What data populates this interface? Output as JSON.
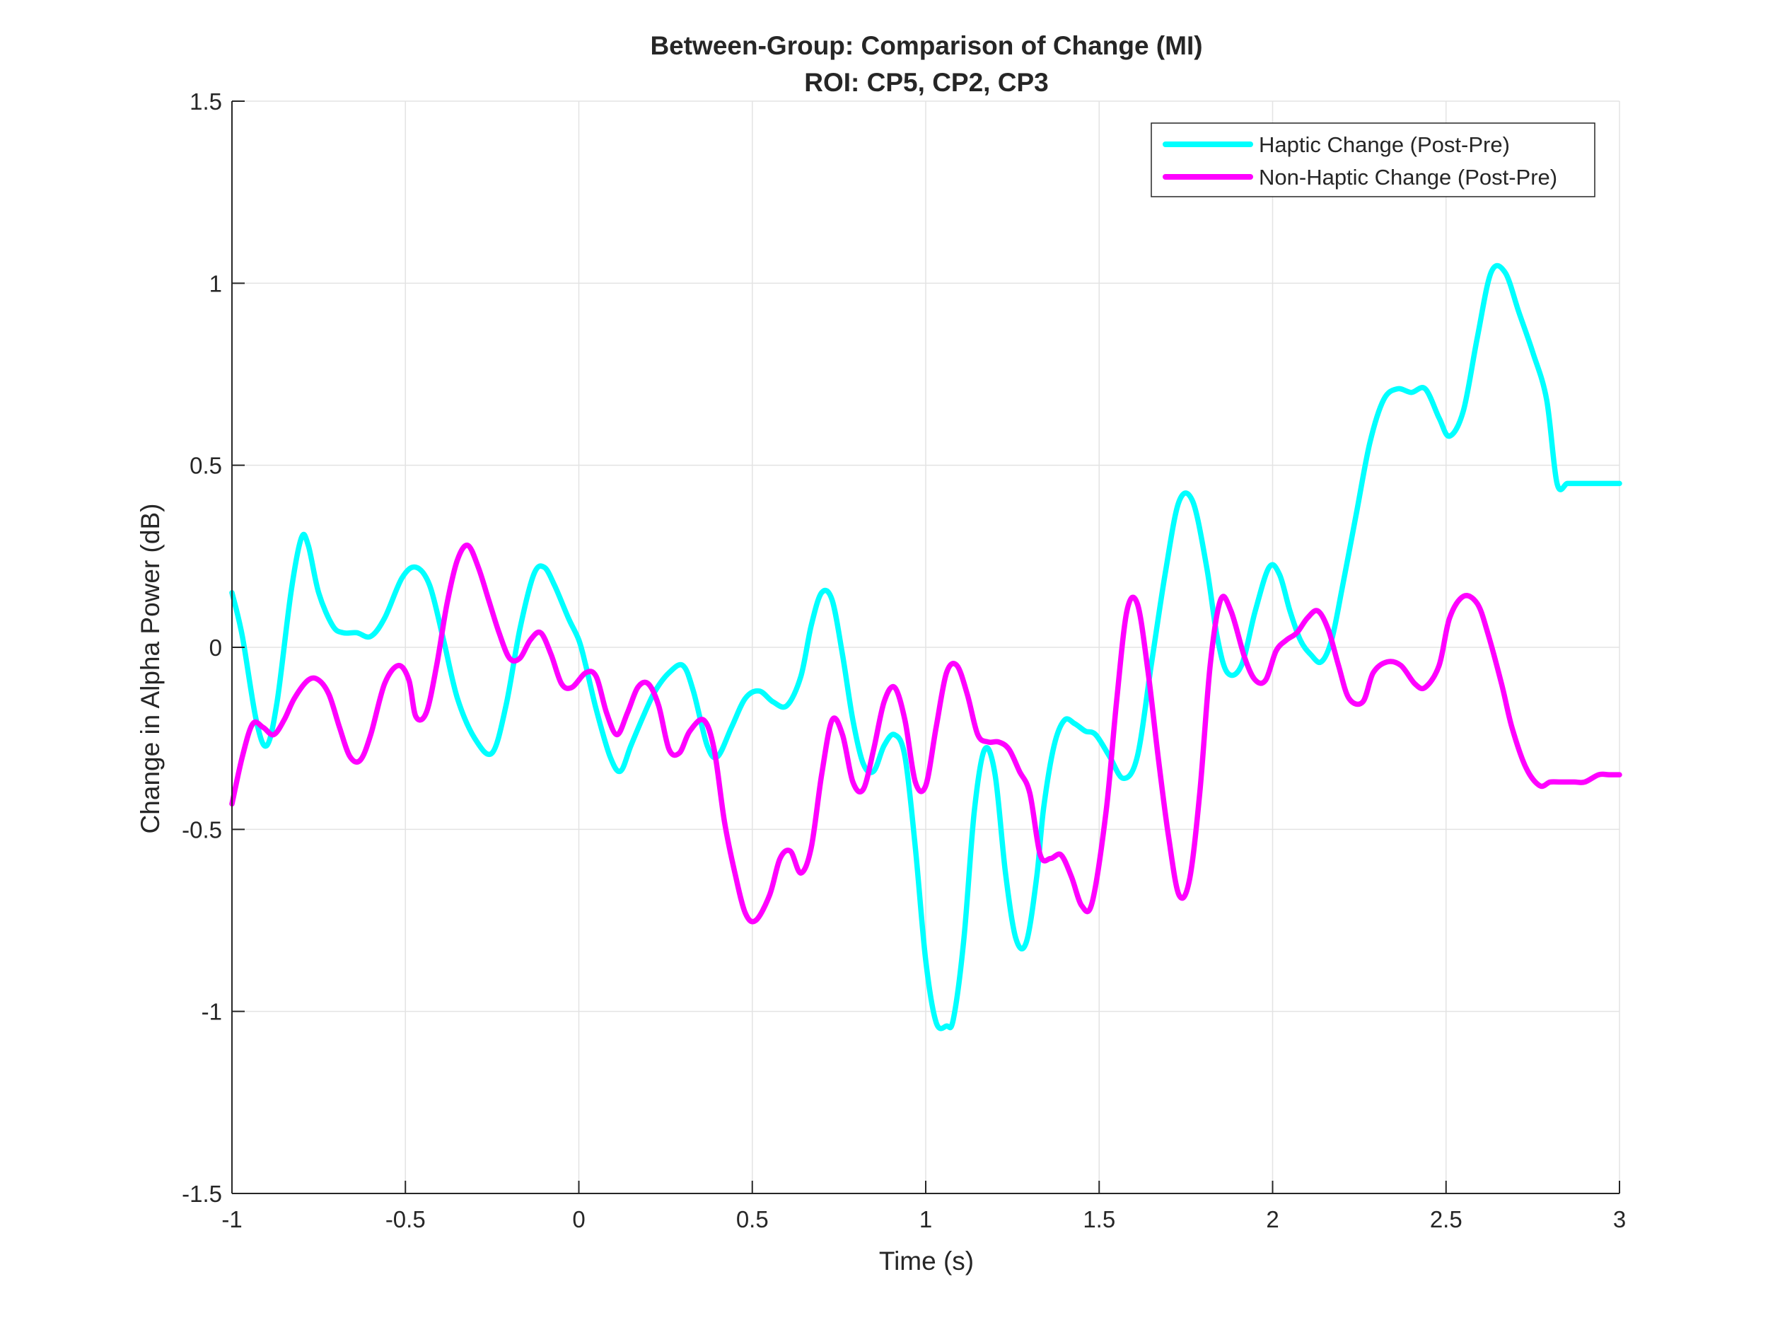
{
  "chart_data": {
    "type": "line",
    "title": "Between-Group: Comparison of Change (MI)",
    "subtitle": "ROI: CP5, CP2, CP3",
    "xlabel": "Time (s)",
    "ylabel": "Change in Alpha Power (dB)",
    "xlim": [
      -1,
      3
    ],
    "ylim": [
      -1.5,
      1.5
    ],
    "xticks": [
      -1,
      -0.5,
      0,
      0.5,
      1,
      1.5,
      2,
      2.5,
      3
    ],
    "xtick_labels": [
      "-1",
      "-0.5",
      "0",
      "0.5",
      "1",
      "1.5",
      "2",
      "2.5",
      "3"
    ],
    "yticks": [
      -1.5,
      -1,
      -0.5,
      0,
      0.5,
      1,
      1.5
    ],
    "ytick_labels": [
      "-1.5",
      "-1",
      "-0.5",
      "0",
      "0.5",
      "1",
      "1.5"
    ],
    "grid": true,
    "legend_position": "top-right",
    "series": [
      {
        "name": "Haptic Change (Post-Pre)",
        "color": "#00FFFF",
        "x": [
          -1,
          -0.97,
          -0.93,
          -0.9,
          -0.87,
          -0.83,
          -0.8,
          -0.78,
          -0.75,
          -0.71,
          -0.68,
          -0.64,
          -0.6,
          -0.56,
          -0.51,
          -0.47,
          -0.43,
          -0.39,
          -0.35,
          -0.3,
          -0.25,
          -0.21,
          -0.17,
          -0.13,
          -0.1,
          -0.07,
          -0.03,
          0,
          0.02,
          0.05,
          0.09,
          0.12,
          0.15,
          0.19,
          0.22,
          0.26,
          0.3,
          0.33,
          0.37,
          0.4,
          0.44,
          0.48,
          0.52,
          0.56,
          0.6,
          0.64,
          0.67,
          0.7,
          0.73,
          0.76,
          0.79,
          0.82,
          0.85,
          0.88,
          0.91,
          0.94,
          0.97,
          1.0,
          1.03,
          1.06,
          1.08,
          1.11,
          1.14,
          1.17,
          1.2,
          1.23,
          1.26,
          1.29,
          1.32,
          1.34,
          1.37,
          1.4,
          1.43,
          1.46,
          1.49,
          1.53,
          1.57,
          1.61,
          1.65,
          1.69,
          1.73,
          1.77,
          1.81,
          1.84,
          1.87,
          1.91,
          1.95,
          1.99,
          2.02,
          2.05,
          2.08,
          2.11,
          2.14,
          2.17,
          2.2,
          2.24,
          2.28,
          2.32,
          2.36,
          2.4,
          2.44,
          2.48,
          2.51,
          2.55,
          2.59,
          2.63,
          2.67,
          2.71,
          2.75,
          2.79,
          2.82,
          2.85,
          2.88,
          2.92,
          2.96,
          3.0
        ],
        "values": [
          0.15,
          0.03,
          -0.2,
          -0.27,
          -0.15,
          0.15,
          0.3,
          0.28,
          0.15,
          0.06,
          0.04,
          0.04,
          0.03,
          0.08,
          0.19,
          0.22,
          0.17,
          0.02,
          -0.14,
          -0.25,
          -0.29,
          -0.16,
          0.05,
          0.2,
          0.22,
          0.17,
          0.08,
          0.02,
          -0.05,
          -0.17,
          -0.3,
          -0.34,
          -0.27,
          -0.18,
          -0.12,
          -0.07,
          -0.05,
          -0.12,
          -0.27,
          -0.3,
          -0.22,
          -0.14,
          -0.12,
          -0.15,
          -0.16,
          -0.08,
          0.06,
          0.15,
          0.13,
          -0.02,
          -0.2,
          -0.32,
          -0.34,
          -0.27,
          -0.24,
          -0.3,
          -0.55,
          -0.86,
          -1.03,
          -1.04,
          -1.02,
          -0.8,
          -0.45,
          -0.28,
          -0.35,
          -0.62,
          -0.8,
          -0.81,
          -0.63,
          -0.44,
          -0.27,
          -0.2,
          -0.21,
          -0.23,
          -0.24,
          -0.3,
          -0.36,
          -0.3,
          -0.05,
          0.2,
          0.4,
          0.4,
          0.22,
          0.03,
          -0.07,
          -0.05,
          0.1,
          0.22,
          0.2,
          0.1,
          0.02,
          -0.02,
          -0.04,
          0.02,
          0.16,
          0.36,
          0.56,
          0.68,
          0.71,
          0.7,
          0.71,
          0.63,
          0.58,
          0.65,
          0.85,
          1.03,
          1.03,
          0.92,
          0.81,
          0.68,
          0.45,
          0.45,
          0.45,
          0.45,
          0.45,
          0.45
        ]
      },
      {
        "name": "Non-Haptic Change (Post-Pre)",
        "color": "#FF00FF",
        "x": [
          -1,
          -0.97,
          -0.94,
          -0.91,
          -0.88,
          -0.85,
          -0.82,
          -0.78,
          -0.75,
          -0.72,
          -0.69,
          -0.66,
          -0.63,
          -0.6,
          -0.56,
          -0.52,
          -0.49,
          -0.47,
          -0.44,
          -0.41,
          -0.38,
          -0.35,
          -0.32,
          -0.29,
          -0.26,
          -0.23,
          -0.2,
          -0.17,
          -0.14,
          -0.11,
          -0.08,
          -0.05,
          -0.02,
          0.02,
          0.05,
          0.08,
          0.11,
          0.14,
          0.17,
          0.2,
          0.23,
          0.26,
          0.29,
          0.32,
          0.36,
          0.39,
          0.42,
          0.45,
          0.48,
          0.51,
          0.55,
          0.58,
          0.61,
          0.64,
          0.67,
          0.7,
          0.73,
          0.76,
          0.79,
          0.82,
          0.85,
          0.88,
          0.91,
          0.94,
          0.97,
          1.0,
          1.03,
          1.06,
          1.09,
          1.12,
          1.15,
          1.18,
          1.21,
          1.24,
          1.27,
          1.3,
          1.33,
          1.36,
          1.39,
          1.42,
          1.45,
          1.48,
          1.52,
          1.55,
          1.58,
          1.61,
          1.64,
          1.67,
          1.7,
          1.73,
          1.76,
          1.79,
          1.82,
          1.85,
          1.88,
          1.92,
          1.95,
          1.98,
          2.01,
          2.04,
          2.07,
          2.1,
          2.13,
          2.16,
          2.19,
          2.22,
          2.26,
          2.29,
          2.33,
          2.37,
          2.41,
          2.44,
          2.48,
          2.51,
          2.55,
          2.59,
          2.62,
          2.66,
          2.69,
          2.73,
          2.77,
          2.8,
          2.83,
          2.87,
          2.9,
          2.94,
          2.97,
          3.0
        ],
        "values": [
          -0.43,
          -0.3,
          -0.21,
          -0.22,
          -0.24,
          -0.2,
          -0.14,
          -0.09,
          -0.09,
          -0.13,
          -0.22,
          -0.3,
          -0.31,
          -0.24,
          -0.1,
          -0.05,
          -0.09,
          -0.19,
          -0.18,
          -0.05,
          0.12,
          0.24,
          0.28,
          0.22,
          0.13,
          0.04,
          -0.03,
          -0.03,
          0.02,
          0.04,
          -0.02,
          -0.1,
          -0.11,
          -0.07,
          -0.08,
          -0.18,
          -0.24,
          -0.18,
          -0.11,
          -0.1,
          -0.16,
          -0.28,
          -0.29,
          -0.23,
          -0.2,
          -0.28,
          -0.48,
          -0.62,
          -0.73,
          -0.75,
          -0.68,
          -0.58,
          -0.56,
          -0.62,
          -0.55,
          -0.35,
          -0.2,
          -0.24,
          -0.37,
          -0.39,
          -0.28,
          -0.15,
          -0.11,
          -0.2,
          -0.37,
          -0.38,
          -0.22,
          -0.07,
          -0.05,
          -0.13,
          -0.24,
          -0.26,
          -0.26,
          -0.28,
          -0.34,
          -0.4,
          -0.57,
          -0.58,
          -0.57,
          -0.63,
          -0.71,
          -0.7,
          -0.45,
          -0.15,
          0.1,
          0.12,
          -0.06,
          -0.3,
          -0.52,
          -0.68,
          -0.64,
          -0.4,
          -0.05,
          0.13,
          0.1,
          -0.03,
          -0.09,
          -0.09,
          -0.01,
          0.02,
          0.04,
          0.08,
          0.1,
          0.05,
          -0.05,
          -0.14,
          -0.15,
          -0.07,
          -0.04,
          -0.05,
          -0.1,
          -0.11,
          -0.05,
          0.08,
          0.14,
          0.12,
          0.04,
          -0.1,
          -0.22,
          -0.33,
          -0.38,
          -0.37,
          -0.37,
          -0.37,
          -0.37,
          -0.35,
          -0.35,
          -0.35
        ]
      }
    ]
  }
}
